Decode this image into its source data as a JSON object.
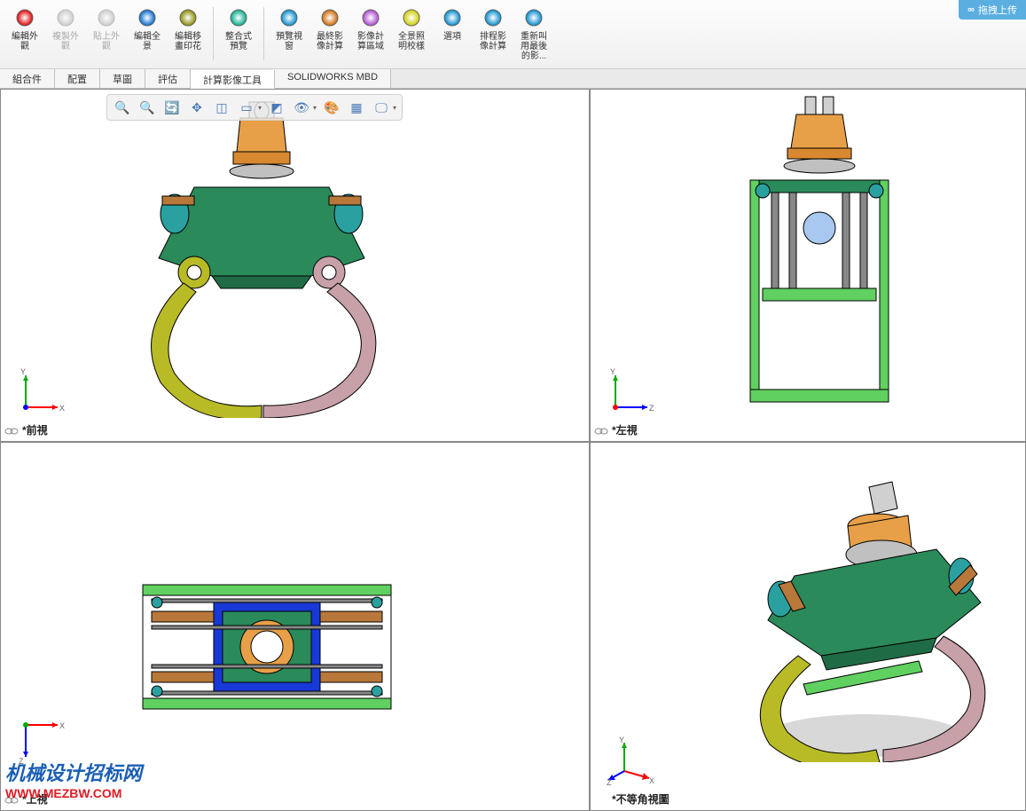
{
  "ribbon": {
    "buttons": [
      {
        "label": "編輯外\n觀",
        "icon": "sphere-edit",
        "disabled": false
      },
      {
        "label": "複製外\n觀",
        "icon": "sphere-copy",
        "disabled": true
      },
      {
        "label": "貼上外\n觀",
        "icon": "sphere-paste",
        "disabled": true
      },
      {
        "label": "編輯全\n景",
        "icon": "sphere-scene",
        "disabled": false
      },
      {
        "label": "編輯移\n畫印花",
        "icon": "sphere-decal",
        "disabled": false
      },
      {
        "label": "整合式\n預覽",
        "icon": "sphere-preview",
        "disabled": false
      },
      {
        "label": "預覽視\n窗",
        "icon": "sphere-window",
        "disabled": false
      },
      {
        "label": "最終影\n像計算",
        "icon": "sphere-final",
        "disabled": false
      },
      {
        "label": "影像計\n算區域",
        "icon": "sphere-region",
        "disabled": false
      },
      {
        "label": "全景照\n明校樣",
        "icon": "sphere-proof",
        "disabled": false
      },
      {
        "label": "選項",
        "icon": "sphere-options",
        "disabled": false
      },
      {
        "label": "排程影\n像計算",
        "icon": "sphere-schedule",
        "disabled": false
      },
      {
        "label": "重新叫\n用最後\n的影...",
        "icon": "sphere-recall",
        "disabled": false
      }
    ],
    "separators_after": [
      4,
      5
    ]
  },
  "badge": {
    "icon": "∞",
    "text": "拖拽上传"
  },
  "tabs": {
    "items": [
      "組合件",
      "配置",
      "草圖",
      "評估",
      "計算影像工具",
      "SOLIDWORKS MBD"
    ],
    "active_index": 4
  },
  "viewbar": {
    "icons": [
      "zoom-fit",
      "zoom-area",
      "rotate",
      "pan",
      "cube",
      "box-dd",
      "section",
      "eye-dd",
      "palette",
      "checker",
      "display-dd"
    ]
  },
  "viewports": {
    "front": {
      "label": "*前視",
      "triad": {
        "x": "X",
        "y": "Y",
        "xcolor": "#ff0000",
        "ycolor": "#00aa00"
      }
    },
    "left": {
      "label": "*左視",
      "triad": {
        "x": "Z",
        "y": "Y",
        "xcolor": "#0000ff",
        "ycolor": "#00aa00"
      }
    },
    "top": {
      "label": "*上視",
      "triad": {
        "x": "X",
        "y": "Z",
        "xcolor": "#ff0000",
        "ycolor": "#0000ff",
        "yneg": true
      }
    },
    "iso": {
      "label": "*不等角視圖",
      "triad": {
        "iso": true
      }
    }
  },
  "model_colors": {
    "swivel_top": "#e8a048",
    "swivel_ring": "#d88830",
    "body": "#2a8a5a",
    "body_dark": "#1f6b45",
    "arm_left": "#b8bb26",
    "arm_right": "#c8a0a8",
    "pivot": "#2aa0a0",
    "frame": "#60d060",
    "blue": "#1838d8",
    "rod": "#b8783a",
    "outline": "#000000"
  },
  "watermark": {
    "line1": "机械设计招标网",
    "line2": "WWW.MEZBW.COM"
  },
  "expand_arrow": "◀"
}
